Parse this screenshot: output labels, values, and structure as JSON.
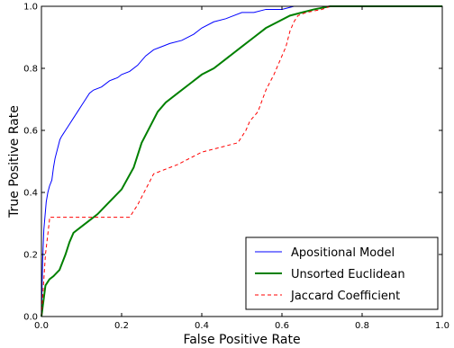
{
  "chart_data": {
    "type": "line",
    "title": "",
    "xlabel": "False Positive Rate",
    "ylabel": "True Positive Rate",
    "xlim": [
      0.0,
      1.0
    ],
    "ylim": [
      0.0,
      1.0
    ],
    "x_ticks": [
      "0.0",
      "0.2",
      "0.4",
      "0.6",
      "0.8",
      "1.0"
    ],
    "y_ticks": [
      "0.0",
      "0.2",
      "0.4",
      "0.6",
      "0.8",
      "1.0"
    ],
    "grid": false,
    "legend_position": "bottom-right",
    "series": [
      {
        "name": "Apositional Model",
        "color": "#0000ff",
        "style": "solid",
        "x": [
          0.0,
          0.003,
          0.006,
          0.01,
          0.012,
          0.016,
          0.02,
          0.023,
          0.026,
          0.03,
          0.034,
          0.038,
          0.042,
          0.046,
          0.05,
          0.055,
          0.06,
          0.07,
          0.08,
          0.09,
          0.1,
          0.11,
          0.12,
          0.13,
          0.15,
          0.17,
          0.19,
          0.2,
          0.22,
          0.24,
          0.26,
          0.28,
          0.3,
          0.32,
          0.35,
          0.38,
          0.4,
          0.43,
          0.46,
          0.5,
          0.53,
          0.56,
          0.6,
          0.63,
          0.66,
          0.7
        ],
        "y": [
          0.0,
          0.18,
          0.28,
          0.34,
          0.37,
          0.4,
          0.42,
          0.43,
          0.44,
          0.48,
          0.51,
          0.53,
          0.55,
          0.57,
          0.58,
          0.59,
          0.6,
          0.62,
          0.64,
          0.66,
          0.68,
          0.7,
          0.72,
          0.73,
          0.74,
          0.76,
          0.77,
          0.78,
          0.79,
          0.81,
          0.84,
          0.86,
          0.87,
          0.88,
          0.89,
          0.91,
          0.93,
          0.95,
          0.96,
          0.98,
          0.98,
          0.99,
          0.99,
          1.0,
          1.0,
          1.0
        ]
      },
      {
        "name": "Unsorted Euclidean",
        "color": "#008000",
        "style": "solid-thick",
        "x": [
          0.0,
          0.005,
          0.01,
          0.015,
          0.02,
          0.03,
          0.045,
          0.06,
          0.07,
          0.08,
          0.1,
          0.12,
          0.14,
          0.17,
          0.2,
          0.23,
          0.25,
          0.27,
          0.29,
          0.31,
          0.34,
          0.37,
          0.4,
          0.43,
          0.46,
          0.5,
          0.53,
          0.56,
          0.59,
          0.62,
          0.65,
          0.68,
          0.72,
          1.0
        ],
        "y": [
          0.0,
          0.05,
          0.1,
          0.11,
          0.12,
          0.13,
          0.15,
          0.2,
          0.24,
          0.27,
          0.29,
          0.31,
          0.33,
          0.37,
          0.41,
          0.48,
          0.56,
          0.61,
          0.66,
          0.69,
          0.72,
          0.75,
          0.78,
          0.8,
          0.83,
          0.87,
          0.9,
          0.93,
          0.95,
          0.97,
          0.98,
          0.99,
          1.0,
          1.0
        ]
      },
      {
        "name": "Jaccard Coefficient",
        "color": "#ff0000",
        "style": "dashed",
        "x": [
          0.0,
          0.01,
          0.02,
          0.02,
          0.03,
          0.12,
          0.12,
          0.22,
          0.24,
          0.26,
          0.28,
          0.3,
          0.32,
          0.34,
          0.37,
          0.4,
          0.43,
          0.46,
          0.49,
          0.5,
          0.51,
          0.52,
          0.54,
          0.56,
          0.58,
          0.6,
          0.61,
          0.62,
          0.63,
          0.64,
          0.66,
          0.7,
          0.72,
          1.0
        ],
        "y": [
          0.0,
          0.2,
          0.31,
          0.32,
          0.32,
          0.32,
          0.32,
          0.32,
          0.36,
          0.41,
          0.46,
          0.47,
          0.48,
          0.49,
          0.51,
          0.53,
          0.54,
          0.55,
          0.56,
          0.58,
          0.6,
          0.63,
          0.66,
          0.73,
          0.78,
          0.84,
          0.87,
          0.92,
          0.95,
          0.97,
          0.98,
          0.99,
          1.0,
          1.0
        ]
      }
    ]
  }
}
